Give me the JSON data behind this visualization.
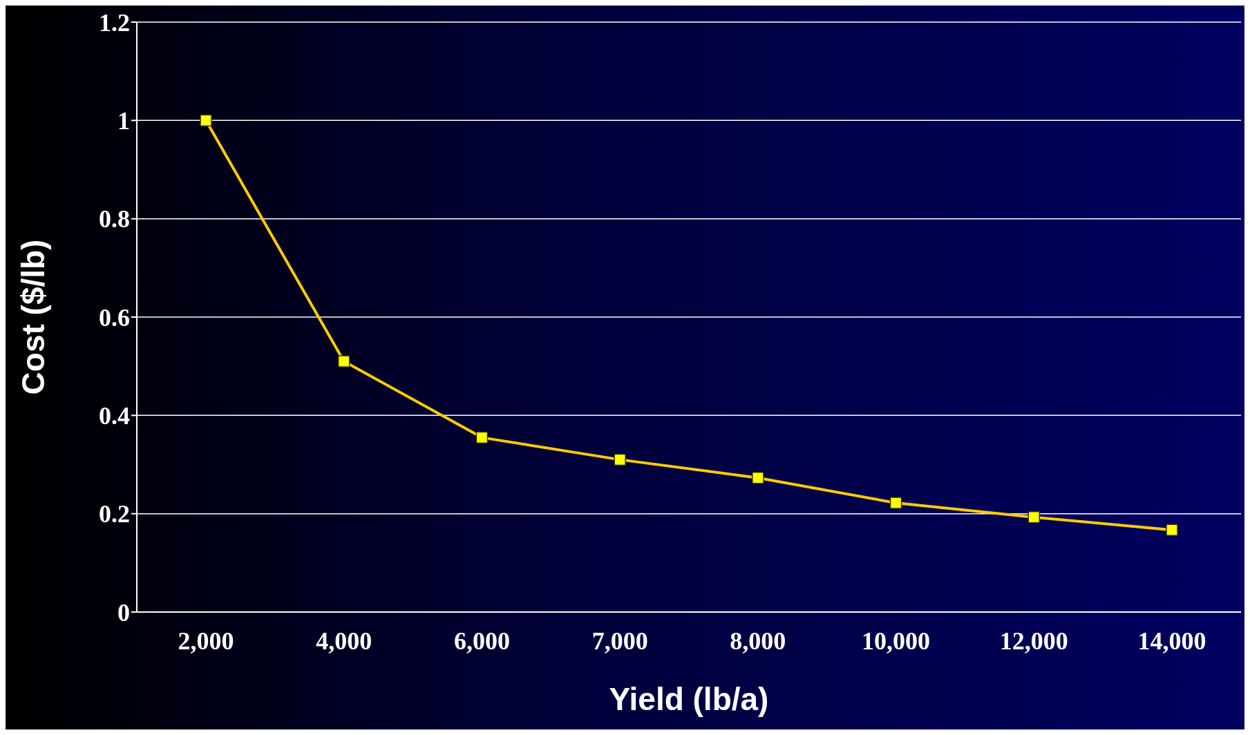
{
  "chart_data": {
    "type": "line",
    "xlabel": "Yield (lb/a)",
    "ylabel": "Cost ($/lb)",
    "categories": [
      "2,000",
      "4,000",
      "6,000",
      "7,000",
      "8,000",
      "10,000",
      "12,000",
      "14,000"
    ],
    "series": [
      {
        "color": "#ffcc00",
        "values": [
          1.0,
          0.51,
          0.355,
          0.31,
          0.273,
          0.222,
          0.193,
          0.167
        ]
      }
    ],
    "ylim": [
      0,
      1.2
    ],
    "yticks": [
      0,
      0.2,
      0.4,
      0.6,
      0.8,
      1,
      1.2
    ],
    "grid": "y",
    "marker": "square",
    "line_style": "solid"
  }
}
